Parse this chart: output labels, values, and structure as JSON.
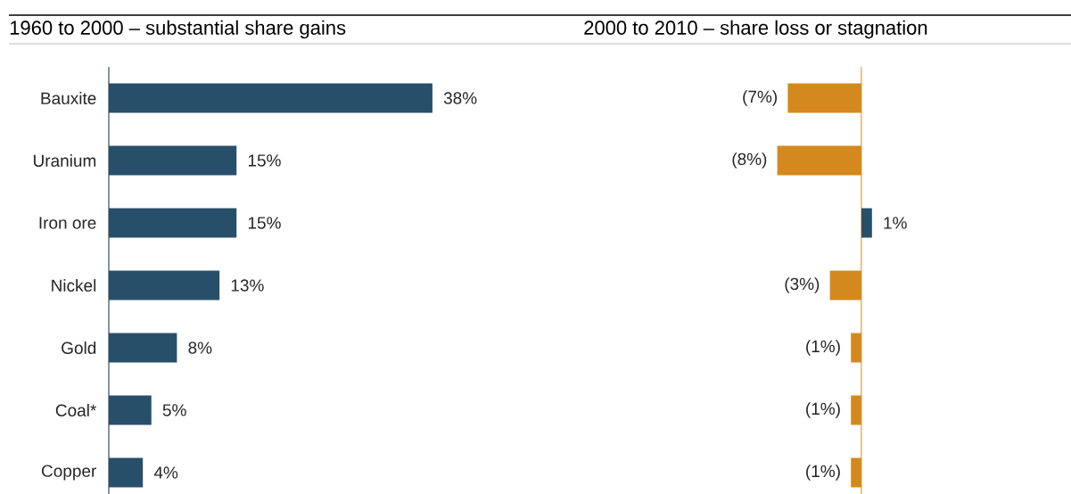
{
  "chart_data": [
    {
      "type": "bar",
      "orientation": "horizontal",
      "title": "1960 to 2000 – substantial share gains",
      "tick_labels": "y",
      "categories": [
        "Bauxite",
        "Uranium",
        "Iron ore",
        "Nickel",
        "Gold",
        "Coal*",
        "Copper"
      ],
      "values": [
        38,
        15,
        15,
        13,
        8,
        5,
        4
      ],
      "color": "#284f6a",
      "value_labels": [
        "38%",
        "15%",
        "15%",
        "13%",
        "8%",
        "5%",
        "4%"
      ]
    },
    {
      "type": "bar",
      "orientation": "horizontal",
      "title": "2000 to 2010 – share loss or stagnation",
      "tick_labels": false,
      "categories": [
        null,
        null,
        null,
        null,
        null,
        null,
        null
      ],
      "values": [
        -7,
        -8,
        1,
        -3,
        -1,
        -1,
        -1
      ],
      "colors": [
        "#d4891e",
        "#d4891e",
        "#284f6a",
        "#d4891e",
        "#d4891e",
        "#d4891e",
        "#d4891e"
      ],
      "value_labels": [
        "(7%)",
        "(8%)",
        "1%",
        "(3%)",
        "(1%)",
        "(1%)",
        "(1%)"
      ],
      "ref_lines": [
        {
          "axis": "x",
          "value": 0,
          "color": "#d4891e"
        }
      ]
    }
  ]
}
